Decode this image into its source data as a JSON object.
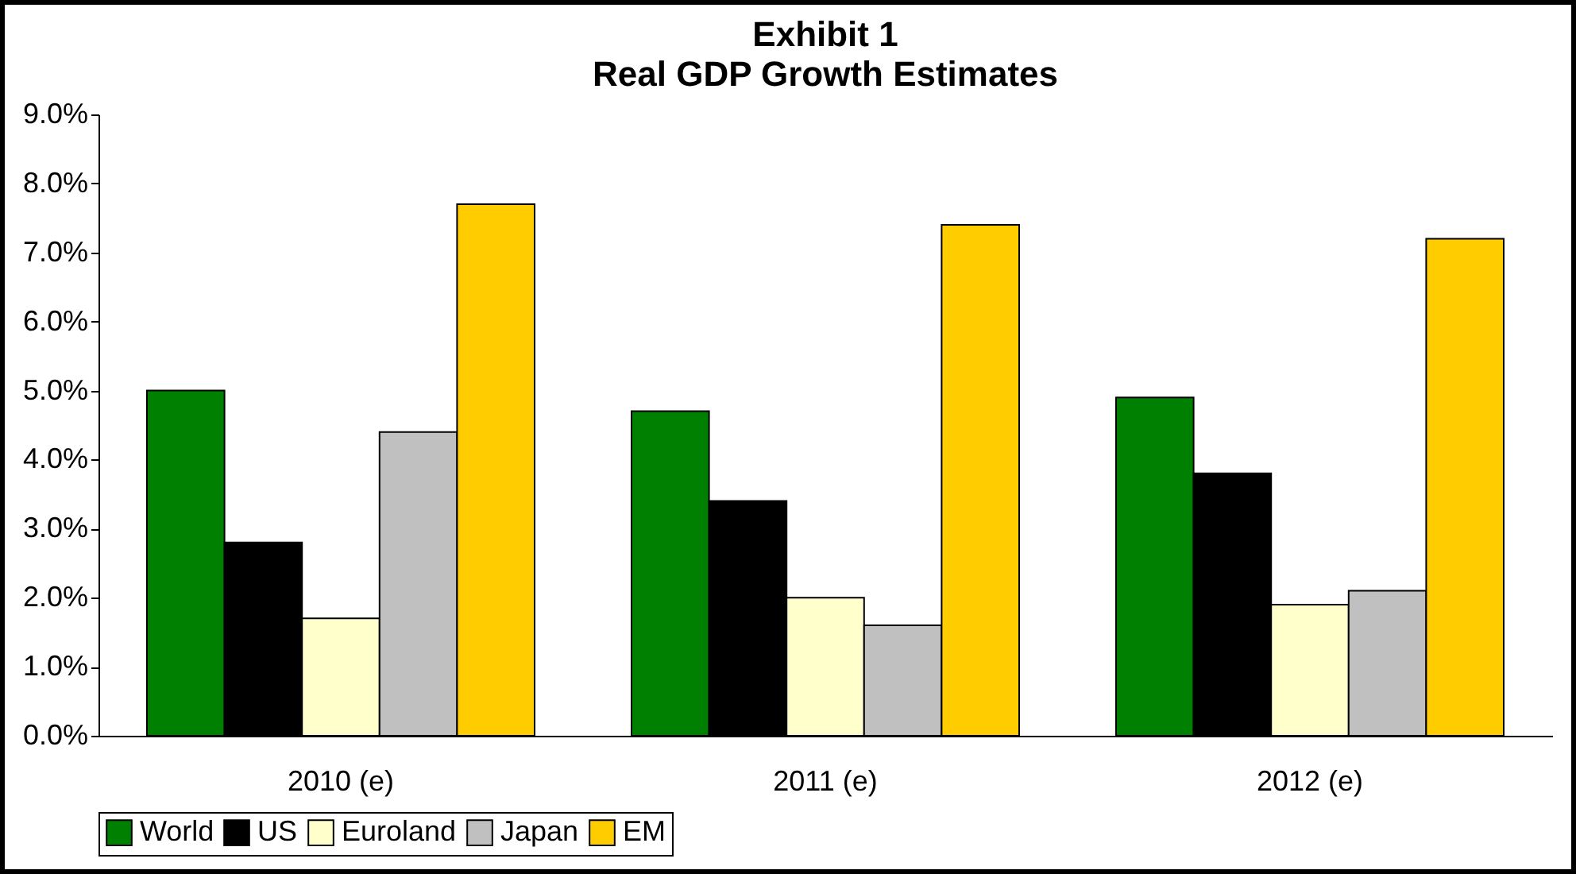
{
  "chart_data": {
    "type": "bar",
    "title": "Exhibit 1",
    "subtitle": "Real GDP Growth Estimates",
    "categories": [
      "2010 (e)",
      "2011 (e)",
      "2012 (e)"
    ],
    "series": [
      {
        "name": "World",
        "color": "#008000",
        "values": [
          5.0,
          4.7,
          4.9
        ]
      },
      {
        "name": "US",
        "color": "#000000",
        "values": [
          2.8,
          3.4,
          3.8
        ]
      },
      {
        "name": "Euroland",
        "color": "#ffffcc",
        "values": [
          1.7,
          2.0,
          1.9
        ]
      },
      {
        "name": "Japan",
        "color": "#c0c0c0",
        "values": [
          4.4,
          1.6,
          2.1
        ]
      },
      {
        "name": "EM",
        "color": "#ffcc00",
        "values": [
          7.7,
          7.4,
          7.2
        ]
      }
    ],
    "ylim": [
      0,
      9
    ],
    "yticks": [
      {
        "value": 0,
        "label": "0.0%"
      },
      {
        "value": 1,
        "label": "1.0%"
      },
      {
        "value": 2,
        "label": "2.0%"
      },
      {
        "value": 3,
        "label": "3.0%"
      },
      {
        "value": 4,
        "label": "4.0%"
      },
      {
        "value": 5,
        "label": "5.0%"
      },
      {
        "value": 6,
        "label": "6.0%"
      },
      {
        "value": 7,
        "label": "7.0%"
      },
      {
        "value": 8,
        "label": "8.0%"
      },
      {
        "value": 9,
        "label": "9.0%"
      }
    ],
    "grid": false,
    "legend": "bottom"
  }
}
